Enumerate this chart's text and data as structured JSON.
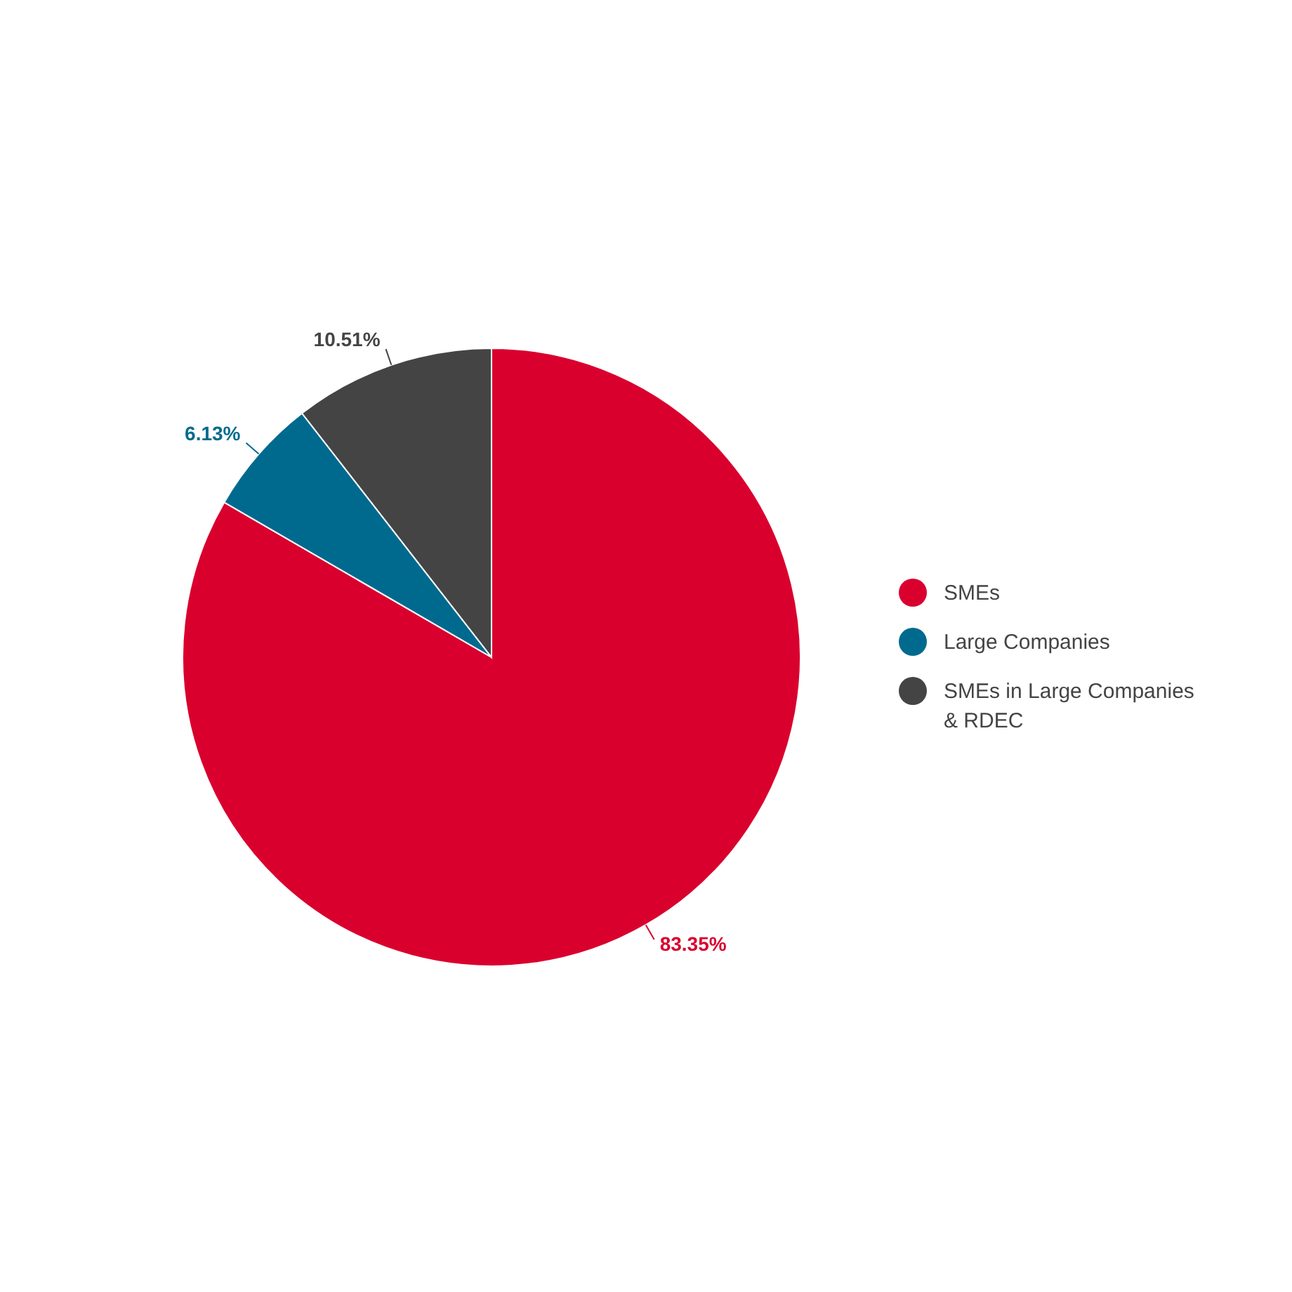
{
  "chart_data": {
    "type": "pie",
    "categories": [
      "SMEs",
      "Large Companies",
      "SMEs in Large Companies & RDEC"
    ],
    "values": [
      83.35,
      6.13,
      10.51
    ],
    "colors": [
      "#d9002e",
      "#006a8e",
      "#444444"
    ],
    "value_labels": [
      "83.35%",
      "6.13%",
      "10.51%"
    ],
    "legend": "right"
  }
}
